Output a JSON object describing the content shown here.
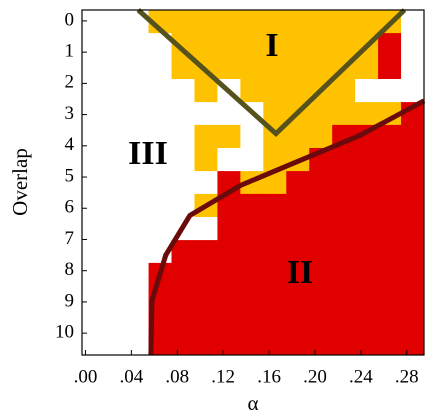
{
  "chart_data": {
    "type": "heatmap",
    "x_label": "α",
    "y_label": "Overlap",
    "xlim": [
      -0.003,
      0.295
    ],
    "ylim": [
      -0.35,
      10.7
    ],
    "y_inverted": true,
    "xticks": [
      {
        "value": 0,
        "label": ".00"
      },
      {
        "value": 0.04,
        "label": ".04"
      },
      {
        "value": 0.08,
        "label": ".08"
      },
      {
        "value": 0.12,
        "label": ".12"
      },
      {
        "value": 0.16,
        "label": ".16"
      },
      {
        "value": 0.2,
        "label": ".20"
      },
      {
        "value": 0.24,
        "label": ".24"
      },
      {
        "value": 0.28,
        "label": ".28"
      }
    ],
    "yticks": [
      0,
      1,
      2,
      3,
      4,
      5,
      6,
      7,
      8,
      9,
      10
    ],
    "x_bins": [
      0.055,
      0.075,
      0.095,
      0.115,
      0.135,
      0.155,
      0.175,
      0.195,
      0.215,
      0.235,
      0.255,
      0.275,
      0.295
    ],
    "y_bins": [
      -0.35,
      0.39,
      1.12,
      1.86,
      2.6,
      3.33,
      4.07,
      4.81,
      5.54,
      6.28,
      7.02,
      7.75,
      8.49,
      9.23,
      9.96,
      10.7
    ],
    "phase_colors": [
      "#ffffff",
      "#ffc200",
      "#e00000"
    ],
    "matrix": [
      [
        1,
        1,
        1,
        1,
        1,
        1,
        1,
        1,
        1,
        1,
        1,
        0
      ],
      [
        0,
        1,
        1,
        1,
        1,
        1,
        1,
        1,
        1,
        1,
        2,
        0
      ],
      [
        0,
        1,
        1,
        1,
        1,
        1,
        1,
        1,
        1,
        1,
        2,
        0
      ],
      [
        0,
        0,
        1,
        0,
        1,
        1,
        1,
        1,
        1,
        0,
        0,
        0
      ],
      [
        0,
        0,
        0,
        0,
        0,
        1,
        1,
        1,
        1,
        1,
        1,
        2
      ],
      [
        0,
        0,
        1,
        1,
        0,
        1,
        1,
        1,
        2,
        2,
        2,
        2
      ],
      [
        0,
        0,
        1,
        0,
        0,
        1,
        1,
        2,
        2,
        2,
        2,
        2
      ],
      [
        0,
        0,
        0,
        2,
        1,
        1,
        2,
        2,
        2,
        2,
        2,
        2
      ],
      [
        0,
        0,
        1,
        2,
        2,
        2,
        2,
        2,
        2,
        2,
        2,
        2
      ],
      [
        0,
        0,
        0,
        2,
        2,
        2,
        2,
        2,
        2,
        2,
        2,
        2
      ],
      [
        0,
        2,
        2,
        2,
        2,
        2,
        2,
        2,
        2,
        2,
        2,
        2
      ],
      [
        2,
        2,
        2,
        2,
        2,
        2,
        2,
        2,
        2,
        2,
        2,
        2
      ],
      [
        2,
        2,
        2,
        2,
        2,
        2,
        2,
        2,
        2,
        2,
        2,
        2
      ],
      [
        2,
        2,
        2,
        2,
        2,
        2,
        2,
        2,
        2,
        2,
        2,
        2
      ],
      [
        2,
        2,
        2,
        2,
        2,
        2,
        2,
        2,
        2,
        2,
        2,
        2
      ]
    ],
    "lines": [
      {
        "color": "#55521c",
        "x": [
          0.046,
          0.166,
          0.278
        ],
        "y": [
          -0.35,
          3.61,
          -0.35
        ]
      },
      {
        "color": "#6a0a0a",
        "x": [
          0.057,
          0.058,
          0.07,
          0.091,
          0.135,
          0.187,
          0.239,
          0.295
        ],
        "y": [
          10.7,
          8.95,
          7.5,
          6.23,
          5.27,
          4.47,
          3.67,
          2.56
        ]
      }
    ],
    "annotations": [
      "I",
      "II",
      "III"
    ]
  }
}
